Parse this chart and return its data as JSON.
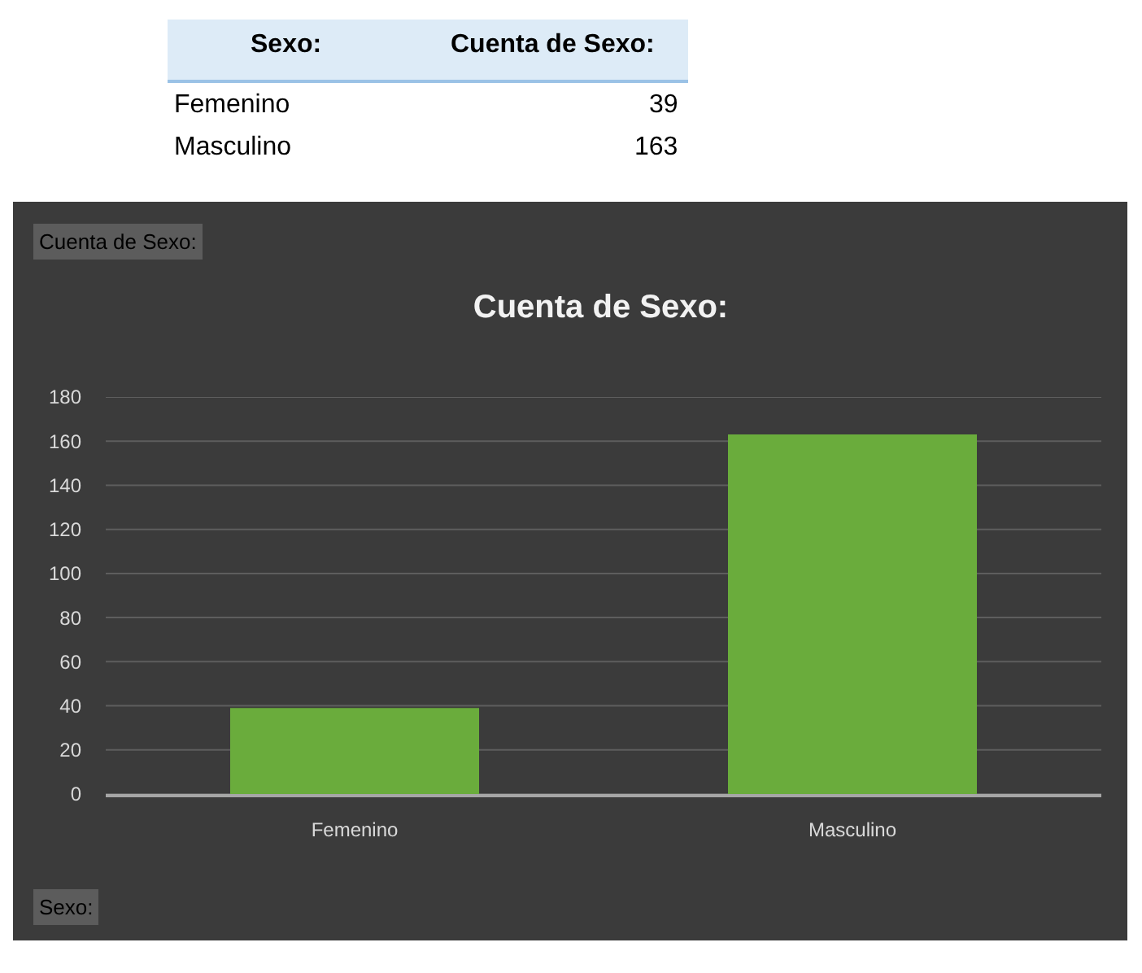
{
  "chart_data": {
    "type": "bar",
    "title": "Cuenta de Sexo:",
    "xlabel": "Sexo:",
    "categories": [
      "Femenino",
      "Masculino"
    ],
    "values": [
      39,
      163
    ],
    "color": "#6aac3c",
    "ylim": [
      0,
      180
    ],
    "yticks": [
      0,
      20,
      40,
      60,
      80,
      100,
      120,
      140,
      160,
      180
    ],
    "grid": "y",
    "annotations": [
      "Sexo:",
      "Cuenta de Sexo:",
      "Femenino",
      "39",
      "Masculino",
      "163",
      "Cuenta de Sexo:"
    ]
  }
}
